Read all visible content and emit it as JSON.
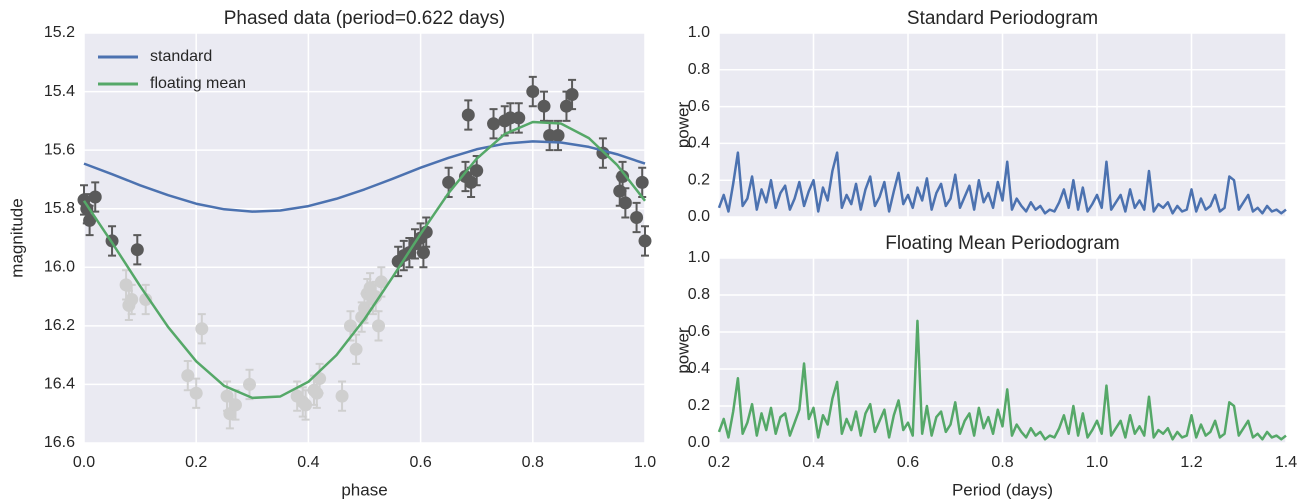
{
  "chart_data": [
    {
      "type": "line",
      "title": "Phased data (period=0.622 days)",
      "xlabel": "phase",
      "ylabel": "magnitude",
      "xlim": [
        0,
        1
      ],
      "ylim": [
        16.6,
        15.2
      ],
      "xticks": [
        {
          "value": 0,
          "label": "0.0"
        },
        0.2,
        0.4,
        0.6,
        0.8,
        {
          "value": 1,
          "label": "1.0"
        }
      ],
      "yticks": [
        15.2,
        15.4,
        15.6,
        15.8,
        {
          "value": 16,
          "label": "16.0"
        },
        16.2,
        16.4,
        16.6
      ],
      "grid": true,
      "legend": "upper left",
      "x": [
        0,
        0.05,
        0.1,
        0.15,
        0.2,
        0.25,
        0.3,
        0.35,
        0.4,
        0.45,
        0.5,
        0.55,
        0.6,
        0.65,
        0.7,
        0.75,
        0.8,
        0.85,
        0.9,
        0.95,
        1
      ],
      "series": [
        {
          "name": "standard",
          "color": "#4c72b0",
          "values": [
            15.646,
            15.682,
            15.72,
            15.754,
            15.783,
            15.802,
            15.81,
            15.806,
            15.791,
            15.766,
            15.734,
            15.698,
            15.66,
            15.626,
            15.597,
            15.578,
            15.57,
            15.574,
            15.589,
            15.614,
            15.646
          ]
        },
        {
          "name": "floating mean",
          "color": "#55a868",
          "values": [
            15.773,
            15.916,
            16.064,
            16.204,
            16.321,
            16.405,
            16.446,
            16.441,
            16.391,
            16.3,
            16.177,
            16.034,
            15.886,
            15.746,
            15.629,
            15.545,
            15.504,
            15.509,
            15.559,
            15.65,
            15.773
          ]
        }
      ],
      "points": [
        {
          "color": "#5a5a5a",
          "yerr": 0.05,
          "x": [
            0,
            0.005,
            0.01,
            0.02,
            0.05,
            0.095,
            0.56,
            0.57,
            0.58,
            0.59,
            0.6,
            0.61,
            0.605,
            0.65,
            0.68,
            0.685,
            0.69,
            0.7,
            0.73,
            0.75,
            0.76,
            0.775,
            0.8,
            0.82,
            0.83,
            0.845,
            0.86,
            0.87,
            0.925,
            0.955,
            0.96,
            0.965,
            0.985,
            0.995,
            1
          ],
          "y": [
            15.77,
            15.8,
            15.84,
            15.76,
            15.91,
            15.94,
            15.98,
            15.96,
            15.95,
            15.92,
            15.9,
            15.88,
            15.95,
            15.71,
            15.69,
            15.48,
            15.71,
            15.67,
            15.51,
            15.5,
            15.49,
            15.49,
            15.4,
            15.45,
            15.55,
            15.55,
            15.45,
            15.41,
            15.61,
            15.74,
            15.69,
            15.78,
            15.83,
            15.71,
            15.91
          ]
        },
        {
          "color": "#cfcfcf",
          "yerr": 0.05,
          "x": [
            0.075,
            0.08,
            0.085,
            0.11,
            0.185,
            0.2,
            0.21,
            0.255,
            0.26,
            0.27,
            0.295,
            0.38,
            0.39,
            0.395,
            0.41,
            0.415,
            0.42,
            0.46,
            0.475,
            0.485,
            0.495,
            0.5,
            0.505,
            0.51,
            0.515,
            0.52,
            0.525,
            0.53
          ],
          "y": [
            16.06,
            16.13,
            16.11,
            16.11,
            16.37,
            16.43,
            16.21,
            16.44,
            16.5,
            16.47,
            16.4,
            16.44,
            16.46,
            16.47,
            16.42,
            16.43,
            16.38,
            16.44,
            16.2,
            16.28,
            16.17,
            16.14,
            16.09,
            16.07,
            16.11,
            16.1,
            16.2,
            16.05
          ]
        }
      ]
    },
    {
      "type": "line",
      "title": "Standard Periodogram",
      "ylabel": "power",
      "xlim": [
        0.2,
        1.4
      ],
      "ylim": [
        0,
        1
      ],
      "xticks": [
        0.2,
        0.4,
        0.6,
        0.8,
        1,
        1.2,
        1.4
      ],
      "yticks": [
        {
          "value": 0,
          "label": "0.0"
        },
        0.2,
        0.4,
        0.6,
        0.8,
        {
          "value": 1,
          "label": "1.0"
        }
      ],
      "grid": true,
      "x": [
        0.2,
        0.21,
        0.22,
        0.23,
        0.24,
        0.25,
        0.26,
        0.27,
        0.28,
        0.29,
        0.3,
        0.31,
        0.32,
        0.33,
        0.34,
        0.35,
        0.36,
        0.37,
        0.38,
        0.39,
        0.4,
        0.41,
        0.42,
        0.43,
        0.44,
        0.45,
        0.46,
        0.47,
        0.48,
        0.49,
        0.5,
        0.51,
        0.52,
        0.53,
        0.54,
        0.55,
        0.56,
        0.57,
        0.58,
        0.59,
        0.6,
        0.61,
        0.62,
        0.63,
        0.64,
        0.65,
        0.66,
        0.67,
        0.68,
        0.69,
        0.7,
        0.71,
        0.72,
        0.73,
        0.74,
        0.75,
        0.76,
        0.77,
        0.78,
        0.79,
        0.8,
        0.81,
        0.82,
        0.83,
        0.84,
        0.85,
        0.86,
        0.87,
        0.88,
        0.89,
        0.9,
        0.91,
        0.92,
        0.93,
        0.94,
        0.95,
        0.96,
        0.97,
        0.98,
        0.99,
        1,
        1.01,
        1.02,
        1.03,
        1.04,
        1.05,
        1.06,
        1.07,
        1.08,
        1.09,
        1.1,
        1.11,
        1.12,
        1.13,
        1.14,
        1.15,
        1.16,
        1.17,
        1.18,
        1.19,
        1.2,
        1.21,
        1.22,
        1.23,
        1.24,
        1.25,
        1.26,
        1.27,
        1.28,
        1.29,
        1.3,
        1.31,
        1.32,
        1.33,
        1.34,
        1.35,
        1.36,
        1.37,
        1.38,
        1.39,
        1.4
      ],
      "series": [
        {
          "color": "#4c72b0",
          "values": [
            0.05,
            0.12,
            0.03,
            0.18,
            0.35,
            0.06,
            0.1,
            0.22,
            0.04,
            0.15,
            0.08,
            0.2,
            0.05,
            0.13,
            0.17,
            0.04,
            0.1,
            0.19,
            0.06,
            0.14,
            0.2,
            0.03,
            0.16,
            0.09,
            0.25,
            0.35,
            0.05,
            0.12,
            0.07,
            0.18,
            0.04,
            0.15,
            0.22,
            0.06,
            0.11,
            0.19,
            0.03,
            0.14,
            0.24,
            0.07,
            0.12,
            0.05,
            0.16,
            0.09,
            0.21,
            0.04,
            0.13,
            0.18,
            0.06,
            0.1,
            0.23,
            0.05,
            0.11,
            0.17,
            0.04,
            0.2,
            0.08,
            0.13,
            0.05,
            0.19,
            0.09,
            0.3,
            0.04,
            0.1,
            0.06,
            0.03,
            0.08,
            0.04,
            0.06,
            0.02,
            0.04,
            0.03,
            0.08,
            0.15,
            0.05,
            0.2,
            0.04,
            0.16,
            0.03,
            0.07,
            0.12,
            0.05,
            0.3,
            0.04,
            0.08,
            0.12,
            0.03,
            0.15,
            0.05,
            0.09,
            0.04,
            0.25,
            0.03,
            0.07,
            0.05,
            0.08,
            0.02,
            0.06,
            0.03,
            0.04,
            0.15,
            0.03,
            0.1,
            0.04,
            0.06,
            0.12,
            0.03,
            0.05,
            0.22,
            0.2,
            0.04,
            0.08,
            0.12,
            0.03,
            0.05,
            0.02,
            0.06,
            0.03,
            0.04,
            0.02,
            0.04
          ]
        }
      ]
    },
    {
      "type": "line",
      "title": "Floating Mean Periodogram",
      "xlabel": "Period (days)",
      "ylabel": "power",
      "xlim": [
        0.2,
        1.4
      ],
      "ylim": [
        0,
        1
      ],
      "xticks": [
        0.2,
        0.4,
        0.6,
        0.8,
        {
          "value": 1,
          "label": "1.0"
        },
        1.2,
        1.4
      ],
      "yticks": [
        {
          "value": 0,
          "label": "0.0"
        },
        0.2,
        0.4,
        0.6,
        0.8,
        {
          "value": 1,
          "label": "1.0"
        }
      ],
      "grid": true,
      "x": [
        0.2,
        0.21,
        0.22,
        0.23,
        0.24,
        0.25,
        0.26,
        0.27,
        0.28,
        0.29,
        0.3,
        0.31,
        0.32,
        0.33,
        0.34,
        0.35,
        0.36,
        0.37,
        0.38,
        0.39,
        0.4,
        0.41,
        0.42,
        0.43,
        0.44,
        0.45,
        0.46,
        0.47,
        0.48,
        0.49,
        0.5,
        0.51,
        0.52,
        0.53,
        0.54,
        0.55,
        0.56,
        0.57,
        0.58,
        0.59,
        0.6,
        0.61,
        0.62,
        0.63,
        0.64,
        0.65,
        0.66,
        0.67,
        0.68,
        0.69,
        0.7,
        0.71,
        0.72,
        0.73,
        0.74,
        0.75,
        0.76,
        0.77,
        0.78,
        0.79,
        0.8,
        0.81,
        0.82,
        0.83,
        0.84,
        0.85,
        0.86,
        0.87,
        0.88,
        0.89,
        0.9,
        0.91,
        0.92,
        0.93,
        0.94,
        0.95,
        0.96,
        0.97,
        0.98,
        0.99,
        1,
        1.01,
        1.02,
        1.03,
        1.04,
        1.05,
        1.06,
        1.07,
        1.08,
        1.09,
        1.1,
        1.11,
        1.12,
        1.13,
        1.14,
        1.15,
        1.16,
        1.17,
        1.18,
        1.19,
        1.2,
        1.21,
        1.22,
        1.23,
        1.24,
        1.25,
        1.26,
        1.27,
        1.28,
        1.29,
        1.3,
        1.31,
        1.32,
        1.33,
        1.34,
        1.35,
        1.36,
        1.37,
        1.38,
        1.39,
        1.4
      ],
      "series": [
        {
          "color": "#55a868",
          "values": [
            0.06,
            0.13,
            0.03,
            0.17,
            0.35,
            0.05,
            0.11,
            0.21,
            0.04,
            0.16,
            0.07,
            0.19,
            0.05,
            0.14,
            0.16,
            0.04,
            0.11,
            0.18,
            0.43,
            0.13,
            0.19,
            0.03,
            0.15,
            0.1,
            0.24,
            0.33,
            0.05,
            0.13,
            0.07,
            0.17,
            0.04,
            0.16,
            0.21,
            0.06,
            0.12,
            0.18,
            0.03,
            0.15,
            0.23,
            0.07,
            0.11,
            0.04,
            0.66,
            0.05,
            0.2,
            0.04,
            0.14,
            0.17,
            0.06,
            0.1,
            0.22,
            0.05,
            0.12,
            0.16,
            0.04,
            0.19,
            0.08,
            0.14,
            0.05,
            0.18,
            0.09,
            0.29,
            0.04,
            0.1,
            0.06,
            0.03,
            0.08,
            0.04,
            0.06,
            0.02,
            0.04,
            0.03,
            0.08,
            0.15,
            0.05,
            0.2,
            0.04,
            0.16,
            0.03,
            0.07,
            0.12,
            0.05,
            0.31,
            0.04,
            0.08,
            0.12,
            0.03,
            0.15,
            0.05,
            0.09,
            0.04,
            0.25,
            0.03,
            0.07,
            0.05,
            0.08,
            0.02,
            0.06,
            0.03,
            0.04,
            0.15,
            0.03,
            0.1,
            0.04,
            0.06,
            0.12,
            0.03,
            0.05,
            0.22,
            0.2,
            0.04,
            0.08,
            0.12,
            0.03,
            0.05,
            0.02,
            0.06,
            0.03,
            0.04,
            0.02,
            0.04
          ]
        }
      ]
    }
  ]
}
